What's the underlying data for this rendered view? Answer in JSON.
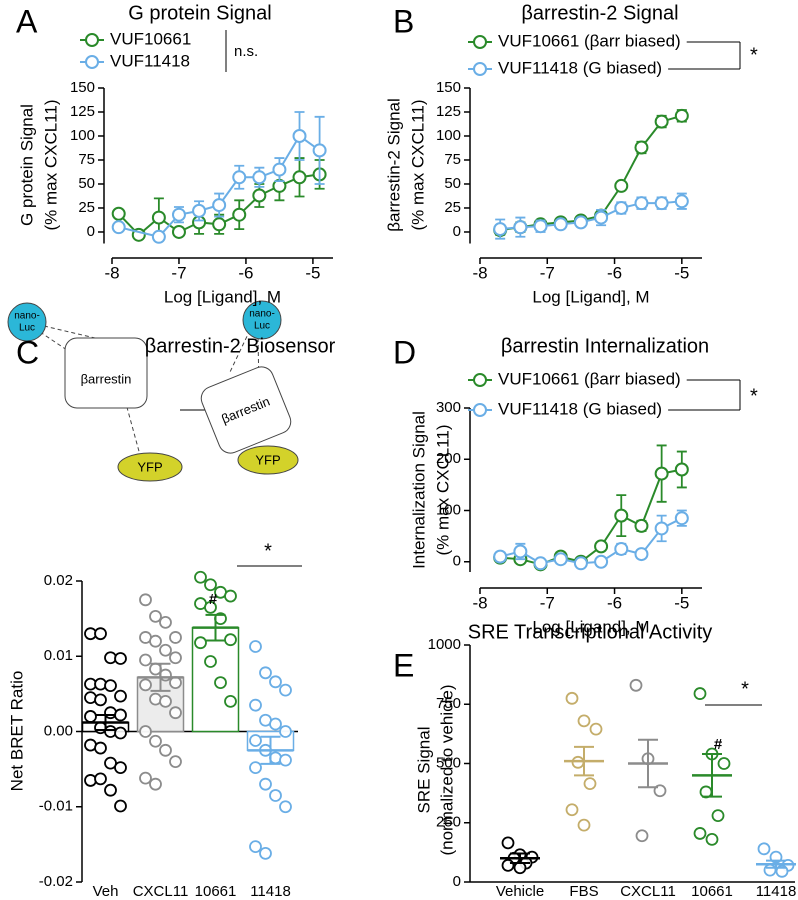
{
  "diagram": {
    "donor": [
      "nano-",
      "Luc"
    ],
    "protein": "βarrestin",
    "acceptor": "YFP"
  },
  "chart_data": [
    {
      "panel": "A",
      "type": "line",
      "title": "G protein Signal",
      "xlabel": "Log [Ligand], M",
      "ylabel": [
        "G protein Signal",
        "(% max CXCL11)"
      ],
      "x": [
        -7.9,
        -7.6,
        -7.3,
        -7.0,
        -6.7,
        -6.4,
        -6.1,
        -5.8,
        -5.5,
        -5.2,
        -4.9
      ],
      "series": [
        {
          "name": "VUF10661",
          "color": "#2a8a2a",
          "values": [
            19,
            -3,
            15,
            0,
            10,
            8,
            18,
            38,
            48,
            57,
            60
          ],
          "errors": [
            0,
            0,
            20,
            0,
            12,
            10,
            15,
            12,
            15,
            20,
            15
          ]
        },
        {
          "name": "VUF11418",
          "color": "#6aaee6",
          "values": [
            5,
            null,
            -5,
            18,
            22,
            28,
            57,
            57,
            65,
            100,
            85
          ],
          "errors": [
            0,
            null,
            0,
            8,
            10,
            12,
            12,
            10,
            12,
            25,
            35
          ]
        }
      ],
      "xlim": [
        -8,
        -4.7
      ],
      "xticks": [
        -8,
        -7,
        -6,
        -5
      ],
      "ylim": [
        -12,
        150
      ],
      "yticks": [
        0,
        25,
        50,
        75,
        100,
        125,
        150
      ],
      "annotations": [
        "n.s."
      ]
    },
    {
      "panel": "B",
      "type": "line",
      "title": "βarrestin-2 Signal",
      "xlabel": "Log [Ligand], M",
      "ylabel": [
        "βarrestin-2 Signal",
        "(% max CXCL11)"
      ],
      "x": [
        -7.7,
        -7.4,
        -7.1,
        -6.8,
        -6.5,
        -6.2,
        -5.9,
        -5.6,
        -5.3,
        -5.0
      ],
      "series": [
        {
          "name": "VUF10661 (βarr biased)",
          "color": "#2a8a2a",
          "values": [
            2,
            5,
            8,
            10,
            12,
            17,
            48,
            88,
            115,
            121
          ],
          "errors": [
            5,
            5,
            4,
            3,
            3,
            5,
            4,
            6,
            6,
            6
          ]
        },
        {
          "name": "VUF11418 (G biased)",
          "color": "#6aaee6",
          "values": [
            3,
            5,
            6,
            8,
            10,
            15,
            25,
            30,
            30,
            32
          ],
          "errors": [
            10,
            10,
            6,
            4,
            3,
            8,
            6,
            6,
            6,
            8
          ]
        }
      ],
      "xlim": [
        -8,
        -4.7
      ],
      "xticks": [
        -8,
        -7,
        -6,
        -5
      ],
      "ylim": [
        -12,
        150
      ],
      "yticks": [
        0,
        25,
        50,
        75,
        100,
        125,
        150
      ],
      "annotations": [
        "*"
      ]
    },
    {
      "panel": "D",
      "type": "line",
      "title": "βarrestin Internalization",
      "xlabel": "Log [Ligand], M",
      "ylabel": [
        "Internalization Signal",
        "(% max CXCL11)"
      ],
      "x": [
        -7.7,
        -7.4,
        -7.1,
        -6.8,
        -6.5,
        -6.2,
        -5.9,
        -5.6,
        -5.3,
        -5.0
      ],
      "series": [
        {
          "name": "VUF10661 (βarr biased)",
          "color": "#2a8a2a",
          "values": [
            8,
            5,
            -5,
            10,
            0,
            30,
            90,
            70,
            172,
            180
          ],
          "errors": [
            5,
            5,
            3,
            8,
            5,
            5,
            40,
            10,
            55,
            35
          ]
        },
        {
          "name": "VUF11418 (G biased)",
          "color": "#6aaee6",
          "values": [
            10,
            20,
            -3,
            5,
            -3,
            0,
            25,
            15,
            65,
            85
          ],
          "errors": [
            8,
            15,
            5,
            8,
            5,
            5,
            10,
            8,
            25,
            15
          ]
        }
      ],
      "xlim": [
        -8,
        -4.7
      ],
      "xticks": [
        -8,
        -7,
        -6,
        -5
      ],
      "ylim": [
        -20,
        300
      ],
      "yticks": [
        0,
        100,
        200,
        300
      ],
      "annotations": [
        "*"
      ]
    },
    {
      "panel": "C",
      "type": "bar",
      "title": "βarrestin-2 Biosensor",
      "ylabel": "Net BRET Ratio",
      "categories": [
        "Veh",
        "CXCL11",
        "10661",
        "11418"
      ],
      "values": [
        0.0012,
        0.0072,
        0.0138,
        -0.0025
      ],
      "errors": [
        0.001,
        0.0018,
        0.0017,
        0.0018
      ],
      "colors": [
        "#000000",
        "#8c8c8c",
        "#2a8a2a",
        "#6aaee6"
      ],
      "points": [
        [
          0.013,
          0.013,
          0.0098,
          0.0097,
          0.0063,
          0.0063,
          0.0061,
          0.0047,
          0.0045,
          0.0042,
          0.0025,
          0.0022,
          0.002,
          0.0005,
          0.0,
          -0.0002,
          -0.0018,
          -0.0022,
          -0.0042,
          -0.0048,
          -0.0065,
          -0.0063,
          -0.0078,
          -0.0099
        ],
        [
          0.0175,
          0.0153,
          0.0145,
          0.0125,
          0.0125,
          0.012,
          0.0108,
          0.0098,
          0.0095,
          0.0083,
          0.0075,
          0.0065,
          0.0062,
          0.0043,
          0.004,
          0.0025,
          0.0,
          -0.0013,
          -0.0025,
          -0.004,
          -0.0062,
          -0.007
        ],
        [
          0.0205,
          0.0195,
          0.0185,
          0.018,
          0.017,
          0.0165,
          0.015,
          0.0122,
          0.0118,
          0.0093,
          0.0065,
          0.004
        ],
        [
          0.0113,
          0.0078,
          0.0066,
          0.0055,
          0.0035,
          0.0015,
          0.001,
          0.0,
          -0.0012,
          -0.0025,
          -0.0035,
          -0.0038,
          -0.0048,
          -0.007,
          -0.0085,
          -0.01,
          -0.0153,
          -0.0162
        ]
      ],
      "ylim": [
        -0.02,
        0.02
      ],
      "yticks": [
        -0.02,
        -0.01,
        {
          "value": 0,
          "label": "0.00"
        },
        0.01,
        0.02
      ],
      "annotations": [
        "#",
        "*"
      ]
    },
    {
      "panel": "E",
      "type": "strip",
      "title": "SRE Transcriptional Activity",
      "ylabel": [
        "SRE  Signal",
        "(normalized to vehicle)"
      ],
      "categories": [
        "Vehicle",
        "FBS",
        "CXCL11",
        "10661",
        "11418"
      ],
      "values": [
        100,
        510,
        500,
        450,
        75
      ],
      "errors": [
        20,
        60,
        100,
        90,
        15
      ],
      "colors": [
        "#000000",
        "#c4ad6a",
        "#8c8c8c",
        "#2a8a2a",
        "#6aaee6"
      ],
      "points": [
        [
          165,
          115,
          105,
          100,
          80,
          70,
          60
        ],
        [
          775,
          680,
          645,
          505,
          415,
          305,
          240
        ],
        [
          830,
          520,
          385,
          195
        ],
        [
          795,
          540,
          500,
          380,
          280,
          205,
          180
        ],
        [
          140,
          105,
          70,
          50,
          45
        ]
      ],
      "ylim": [
        0,
        1000
      ],
      "yticks": [
        0,
        250,
        500,
        750,
        1000
      ],
      "annotations": [
        "#",
        "*"
      ]
    }
  ]
}
